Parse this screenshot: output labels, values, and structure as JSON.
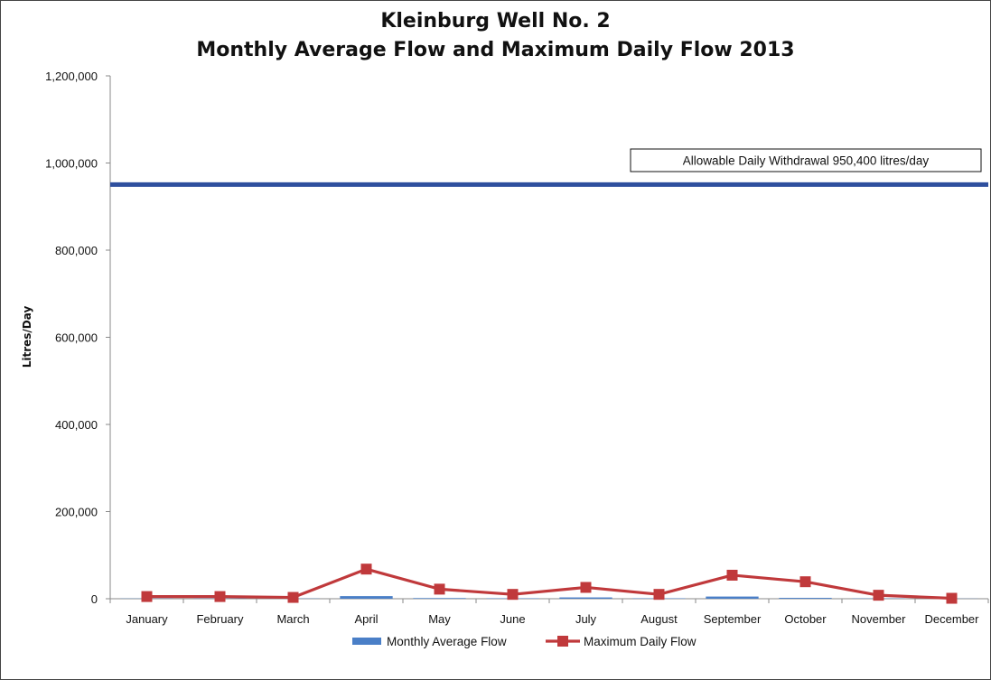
{
  "chart_data": {
    "type": "bar+line",
    "title": [
      "Kleinburg Well No. 2",
      "Monthly Average Flow and Maximum Daily Flow 2013"
    ],
    "xlabel": "",
    "ylabel": "Litres/Day",
    "ylim": [
      0,
      1200000
    ],
    "yticks": [
      0,
      200000,
      400000,
      600000,
      800000,
      1000000,
      1200000
    ],
    "ytick_labels": [
      "0",
      "200,000",
      "400,000",
      "600,000",
      "800,000",
      "1,000,000",
      "1,200,000"
    ],
    "categories": [
      "January",
      "February",
      "March",
      "April",
      "May",
      "June",
      "July",
      "August",
      "September",
      "October",
      "November",
      "December"
    ],
    "series": [
      {
        "name": "Monthly Average Flow",
        "type": "bar",
        "color": "#4a7fc7",
        "values": [
          500,
          500,
          500,
          6000,
          1500,
          1000,
          3000,
          1000,
          5000,
          2000,
          700,
          300
        ]
      },
      {
        "name": "Maximum Daily Flow",
        "type": "line",
        "color": "#c0393b",
        "marker": "square",
        "values": [
          5000,
          5000,
          3000,
          68000,
          22000,
          10000,
          26000,
          10000,
          54000,
          39000,
          8000,
          1000
        ]
      }
    ],
    "reference_line": {
      "value": 950400,
      "color": "#2e4f9e",
      "label": "Allowable Daily Withdrawal 950,400 litres/day"
    },
    "legend_position": "bottom",
    "grid": false
  }
}
